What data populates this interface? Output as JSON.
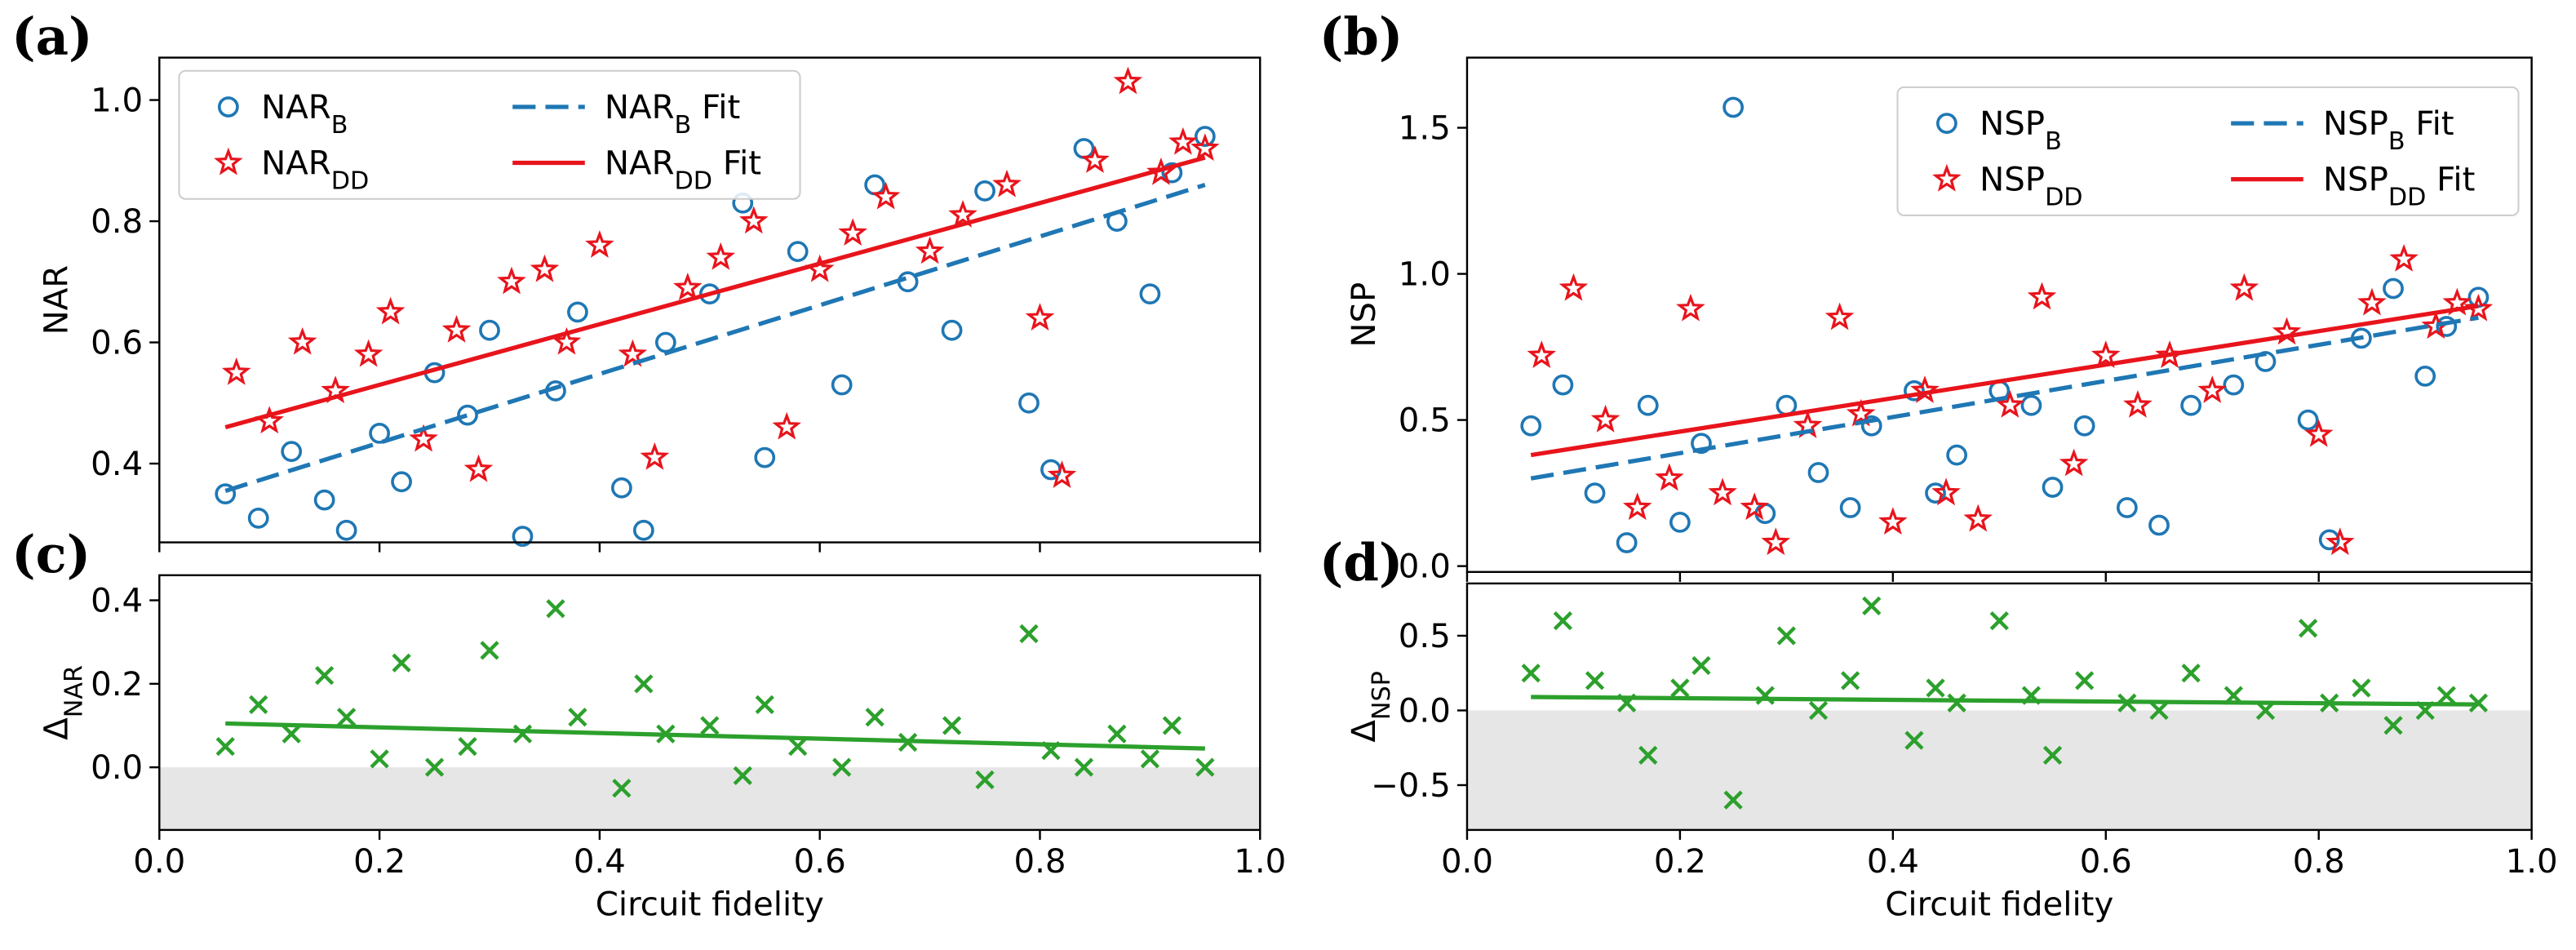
{
  "chart_data": [
    {
      "type": "scatter",
      "label": "(a)",
      "y_label": "NAR",
      "legend": "upper left",
      "xlim": [
        0,
        1
      ],
      "xticks": [
        0,
        0.2,
        0.4,
        0.6,
        0.8,
        1
      ],
      "ylim": [
        0.27,
        1.07
      ],
      "yticks": [
        0.4,
        0.6,
        0.8,
        {
          "value": 1,
          "label": "1.0"
        }
      ],
      "series": [
        {
          "name": "NAR_{B}",
          "color": "#1f77b4",
          "marker": "circle",
          "x": [
            0.06,
            0.09,
            0.12,
            0.15,
            0.17,
            0.2,
            0.22,
            0.25,
            0.28,
            0.3,
            0.33,
            0.36,
            0.38,
            0.42,
            0.44,
            0.46,
            0.5,
            0.53,
            0.55,
            0.58,
            0.62,
            0.65,
            0.68,
            0.72,
            0.75,
            0.79,
            0.81,
            0.84,
            0.87,
            0.9,
            0.92,
            0.95
          ],
          "values": [
            0.35,
            0.31,
            0.42,
            0.34,
            0.29,
            0.45,
            0.37,
            0.55,
            0.48,
            0.62,
            0.28,
            0.52,
            0.65,
            0.36,
            0.29,
            0.6,
            0.68,
            0.83,
            0.41,
            0.75,
            0.53,
            0.86,
            0.7,
            0.62,
            0.85,
            0.5,
            0.39,
            0.92,
            0.8,
            0.68,
            0.88,
            0.94
          ]
        },
        {
          "name": "NAR_{DD}",
          "color": "#e8141c",
          "marker": "star",
          "x": [
            0.07,
            0.1,
            0.13,
            0.16,
            0.19,
            0.21,
            0.24,
            0.27,
            0.29,
            0.32,
            0.35,
            0.37,
            0.4,
            0.43,
            0.45,
            0.48,
            0.51,
            0.54,
            0.57,
            0.6,
            0.63,
            0.66,
            0.7,
            0.73,
            0.77,
            0.8,
            0.82,
            0.85,
            0.88,
            0.91,
            0.93,
            0.95
          ],
          "values": [
            0.55,
            0.47,
            0.6,
            0.52,
            0.58,
            0.65,
            0.44,
            0.62,
            0.39,
            0.7,
            0.72,
            0.6,
            0.76,
            0.58,
            0.41,
            0.69,
            0.74,
            0.8,
            0.46,
            0.72,
            0.78,
            0.84,
            0.75,
            0.81,
            0.86,
            0.64,
            0.38,
            0.9,
            1.03,
            0.88,
            0.93,
            0.92
          ]
        },
        {
          "name": "NAR_{B} Fit",
          "color": "#1f77b4",
          "marker": "line",
          "linestyle": "dashed",
          "x": [
            0.06,
            0.95
          ],
          "values": [
            0.355,
            0.86
          ]
        },
        {
          "name": "NAR_{DD} Fit",
          "color": "#e8141c",
          "marker": "line",
          "linestyle": "solid",
          "x": [
            0.06,
            0.95
          ],
          "values": [
            0.46,
            0.905
          ]
        }
      ]
    },
    {
      "type": "scatter",
      "label": "(c)",
      "y_label": "Δ_{NAR}",
      "x_label": "Circuit fidelity",
      "shaded_below": 0,
      "xlim": [
        0,
        1
      ],
      "xticks": [
        {
          "value": 0,
          "label": "0.0"
        },
        0.2,
        0.4,
        0.6,
        0.8,
        {
          "value": 1,
          "label": "1.0"
        }
      ],
      "ylim": [
        -0.15,
        0.46
      ],
      "yticks": [
        {
          "value": 0,
          "label": "0.0"
        },
        0.2,
        0.4
      ],
      "series": [
        {
          "color": "#2ca02c",
          "marker": "cross",
          "x": [
            0.06,
            0.09,
            0.12,
            0.15,
            0.17,
            0.2,
            0.22,
            0.25,
            0.28,
            0.3,
            0.33,
            0.36,
            0.38,
            0.42,
            0.44,
            0.46,
            0.5,
            0.53,
            0.55,
            0.58,
            0.62,
            0.65,
            0.68,
            0.72,
            0.75,
            0.79,
            0.81,
            0.84,
            0.87,
            0.9,
            0.92,
            0.95
          ],
          "values": [
            0.05,
            0.15,
            0.08,
            0.22,
            0.12,
            0.02,
            0.25,
            0.0,
            0.05,
            0.28,
            0.08,
            0.38,
            0.12,
            -0.05,
            0.2,
            0.08,
            0.1,
            -0.02,
            0.15,
            0.05,
            0.0,
            0.12,
            0.06,
            0.1,
            -0.03,
            0.32,
            0.04,
            0.0,
            0.08,
            0.02,
            0.1,
            0.0
          ]
        },
        {
          "color": "#2ca02c",
          "marker": "line",
          "linestyle": "solid",
          "x": [
            0.06,
            0.95
          ],
          "values": [
            0.105,
            0.045
          ]
        }
      ]
    },
    {
      "type": "scatter",
      "label": "(b)",
      "y_label": "NSP",
      "legend": "upper right",
      "xlim": [
        0,
        1
      ],
      "xticks": [
        0,
        0.2,
        0.4,
        0.6,
        0.8,
        1
      ],
      "ylim": [
        -0.02,
        1.74
      ],
      "yticks": [
        {
          "value": 0,
          "label": "0.0"
        },
        0.5,
        {
          "value": 1,
          "label": "1.0"
        },
        1.5
      ],
      "series": [
        {
          "name": "NSP_{B}",
          "color": "#1f77b4",
          "marker": "circle",
          "x": [
            0.06,
            0.09,
            0.12,
            0.15,
            0.17,
            0.2,
            0.22,
            0.25,
            0.28,
            0.3,
            0.33,
            0.36,
            0.38,
            0.42,
            0.44,
            0.46,
            0.5,
            0.53,
            0.55,
            0.58,
            0.62,
            0.65,
            0.68,
            0.72,
            0.75,
            0.79,
            0.81,
            0.84,
            0.87,
            0.9,
            0.92,
            0.95
          ],
          "values": [
            0.48,
            0.62,
            0.25,
            0.08,
            0.55,
            0.15,
            0.42,
            1.57,
            0.18,
            0.55,
            0.32,
            0.2,
            0.48,
            0.6,
            0.25,
            0.38,
            0.6,
            0.55,
            0.27,
            0.48,
            0.2,
            0.14,
            0.55,
            0.62,
            0.7,
            0.5,
            0.09,
            0.78,
            0.95,
            0.65,
            0.82,
            0.92
          ]
        },
        {
          "name": "NSP_{DD}",
          "color": "#e8141c",
          "marker": "star",
          "x": [
            0.07,
            0.1,
            0.13,
            0.16,
            0.19,
            0.21,
            0.24,
            0.27,
            0.29,
            0.32,
            0.35,
            0.37,
            0.4,
            0.43,
            0.45,
            0.48,
            0.51,
            0.54,
            0.57,
            0.6,
            0.63,
            0.66,
            0.7,
            0.73,
            0.77,
            0.8,
            0.82,
            0.85,
            0.88,
            0.91,
            0.93,
            0.95
          ],
          "values": [
            0.72,
            0.95,
            0.5,
            0.2,
            0.3,
            0.88,
            0.25,
            0.2,
            0.08,
            0.48,
            0.85,
            0.52,
            0.15,
            0.6,
            0.25,
            0.16,
            0.55,
            0.92,
            0.35,
            0.72,
            0.55,
            0.72,
            0.6,
            0.95,
            0.8,
            0.45,
            0.08,
            0.9,
            1.05,
            0.82,
            0.9,
            0.88
          ]
        },
        {
          "name": "NSP_{B} Fit",
          "color": "#1f77b4",
          "marker": "line",
          "linestyle": "dashed",
          "x": [
            0.06,
            0.95
          ],
          "values": [
            0.3,
            0.85
          ]
        },
        {
          "name": "NSP_{DD} Fit",
          "color": "#e8141c",
          "marker": "line",
          "linestyle": "solid",
          "x": [
            0.06,
            0.95
          ],
          "values": [
            0.38,
            0.89
          ]
        }
      ]
    },
    {
      "type": "scatter",
      "label": "(d)",
      "y_label": "Δ_{NSP}",
      "x_label": "Circuit fidelity",
      "shaded_below": 0,
      "xlim": [
        0,
        1
      ],
      "xticks": [
        {
          "value": 0,
          "label": "0.0"
        },
        0.2,
        0.4,
        0.6,
        0.8,
        {
          "value": 1,
          "label": "1.0"
        }
      ],
      "ylim": [
        -0.8,
        0.85
      ],
      "yticks": [
        {
          "value": -0.5,
          "label": "−0.5"
        },
        {
          "value": 0,
          "label": "0.0"
        },
        0.5
      ],
      "series": [
        {
          "color": "#2ca02c",
          "marker": "cross",
          "x": [
            0.06,
            0.09,
            0.12,
            0.15,
            0.17,
            0.2,
            0.22,
            0.25,
            0.28,
            0.3,
            0.33,
            0.36,
            0.38,
            0.42,
            0.44,
            0.46,
            0.5,
            0.53,
            0.55,
            0.58,
            0.62,
            0.65,
            0.68,
            0.72,
            0.75,
            0.79,
            0.81,
            0.84,
            0.87,
            0.9,
            0.92,
            0.95
          ],
          "values": [
            0.25,
            0.6,
            0.2,
            0.05,
            -0.3,
            0.15,
            0.3,
            -0.6,
            0.1,
            0.5,
            0.0,
            0.2,
            0.7,
            -0.2,
            0.15,
            0.05,
            0.6,
            0.1,
            -0.3,
            0.2,
            0.05,
            0.0,
            0.25,
            0.1,
            0.0,
            0.55,
            0.05,
            0.15,
            -0.1,
            0.0,
            0.1,
            0.05
          ]
        },
        {
          "color": "#2ca02c",
          "marker": "line",
          "linestyle": "solid",
          "x": [
            0.06,
            0.95
          ],
          "values": [
            0.09,
            0.04
          ]
        }
      ]
    }
  ]
}
